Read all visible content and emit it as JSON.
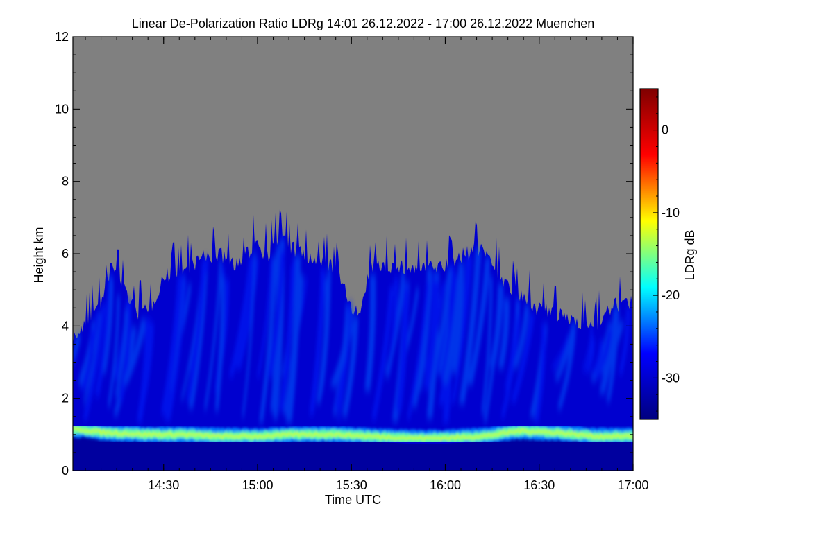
{
  "chart_data": {
    "type": "heatmap",
    "title": "Linear De-Polarization Ratio LDRg   14:01 26.12.2022 - 17:00 26.12.2022 Muenchen",
    "xlabel": "Time UTC",
    "ylabel": "Height km",
    "x_ticks": [
      "14:30",
      "15:00",
      "15:30",
      "16:00",
      "16:30",
      "17:00"
    ],
    "x_tick_values_hours": [
      14.5,
      15.0,
      15.5,
      16.0,
      16.5,
      17.0
    ],
    "xlim_hours": [
      14.0167,
      17.0
    ],
    "y_ticks": [
      0,
      2,
      4,
      6,
      8,
      10,
      12
    ],
    "ylim": [
      0,
      12
    ],
    "colorbar": {
      "label": "LDRg dB",
      "ticks": [
        0,
        -10,
        -20,
        -30
      ],
      "range": [
        -35,
        5
      ],
      "colormap": [
        "#00007f",
        "#0000ff",
        "#00ffff",
        "#ffff00",
        "#ff0000",
        "#7f0000"
      ]
    },
    "no_signal_color": "#808080",
    "signal_top_km": {
      "time_hours": [
        14.02,
        14.1,
        14.18,
        14.22,
        14.3,
        14.35,
        14.42,
        14.5,
        14.6,
        14.7,
        14.8,
        14.9,
        15.0,
        15.05,
        15.12,
        15.2,
        15.3,
        15.4,
        15.5,
        15.55,
        15.6,
        15.7,
        15.8,
        15.9,
        16.0,
        16.1,
        16.2,
        16.3,
        16.4,
        16.5,
        16.6,
        16.7,
        16.8,
        16.9,
        17.0
      ],
      "height_km": [
        3.9,
        4.3,
        5.0,
        5.9,
        5.2,
        4.6,
        4.6,
        5.6,
        5.7,
        6.1,
        6.2,
        5.9,
        6.6,
        6.1,
        6.7,
        6.3,
        6.0,
        5.9,
        4.8,
        4.5,
        5.9,
        5.9,
        5.8,
        5.8,
        5.9,
        6.2,
        6.4,
        5.5,
        5.0,
        4.7,
        4.5,
        4.4,
        4.2,
        4.8,
        4.9
      ]
    },
    "layer_center_km": {
      "time_hours": [
        14.02,
        14.2,
        14.4,
        14.6,
        14.8,
        15.0,
        15.2,
        15.4,
        15.6,
        15.8,
        16.0,
        16.2,
        16.4,
        16.6,
        16.8,
        17.0
      ],
      "height_km": [
        1.15,
        1.05,
        1.0,
        1.0,
        0.95,
        0.95,
        1.0,
        1.0,
        0.95,
        0.9,
        0.9,
        0.95,
        1.1,
        1.05,
        0.95,
        0.95
      ]
    },
    "background_ldr_db": -30,
    "layer_ldr_db": -16
  }
}
